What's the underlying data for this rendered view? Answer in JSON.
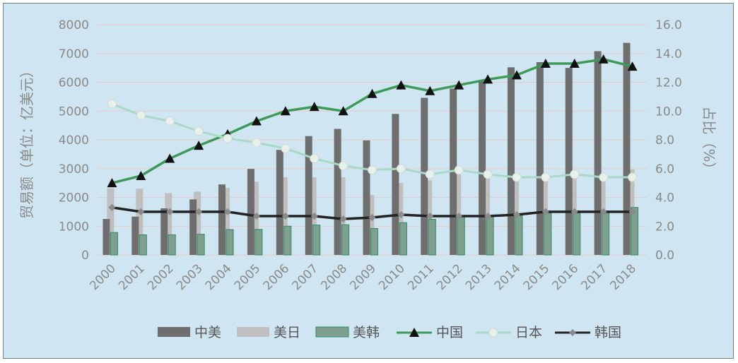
{
  "chart_data": {
    "type": "bar",
    "categories": [
      "2000",
      "2001",
      "2002",
      "2003",
      "2004",
      "2005",
      "2006",
      "2007",
      "2008",
      "2009",
      "2010",
      "2011",
      "2012",
      "2013",
      "2014",
      "2015",
      "2016",
      "2017",
      "2018"
    ],
    "ylabel": "贸易额（单位：亿美元）",
    "y2label": "占比（%）",
    "ylim": [
      0,
      8000
    ],
    "y2lim": [
      0,
      16.0
    ],
    "yticks": [
      "0",
      "1000",
      "2000",
      "3000",
      "4000",
      "5000",
      "6000",
      "7000",
      "8000"
    ],
    "y2ticks": [
      "0.0",
      "2.0",
      "4.0",
      "6.0",
      "8.0",
      "10.0",
      "12.0",
      "14.0",
      "16.0"
    ],
    "grid": true,
    "legend_position": "bottom",
    "bar_series": [
      {
        "name": "中美",
        "color": "#6e6e6e",
        "values": [
          1250,
          1330,
          1620,
          1930,
          2450,
          2990,
          3650,
          4130,
          4380,
          3980,
          4900,
          5460,
          5780,
          6050,
          6520,
          6700,
          6500,
          7080,
          7370
        ]
      },
      {
        "name": "美日",
        "color": "#bfbfbf",
        "values": [
          2310,
          2300,
          2150,
          2200,
          2330,
          2550,
          2700,
          2700,
          2700,
          2080,
          2500,
          2590,
          2800,
          2700,
          2780,
          2800,
          2800,
          2800,
          2970
        ]
      },
      {
        "name": "美韩",
        "color": "#7f9f8f",
        "values": [
          780,
          700,
          700,
          720,
          880,
          890,
          1000,
          1040,
          1050,
          920,
          1120,
          1240,
          1350,
          1350,
          1380,
          1460,
          1460,
          1480,
          1650
        ]
      }
    ],
    "line_series": [
      {
        "name": "中国",
        "color": "#3f9a5a",
        "marker": "triangle",
        "values": [
          5.0,
          5.5,
          6.7,
          7.6,
          8.4,
          9.3,
          10.0,
          10.3,
          10.0,
          11.2,
          11.8,
          11.4,
          11.8,
          12.2,
          12.5,
          13.3,
          13.3,
          13.6,
          13.1
        ]
      },
      {
        "name": "日本",
        "color": "#a8d9c6",
        "marker": "circle",
        "values": [
          10.5,
          9.7,
          9.3,
          8.6,
          8.1,
          7.8,
          7.4,
          6.7,
          6.2,
          5.9,
          6.0,
          5.6,
          5.9,
          5.6,
          5.4,
          5.4,
          5.6,
          5.4,
          5.4
        ]
      },
      {
        "name": "韩国",
        "color": "#222222",
        "marker": "diamond",
        "values": [
          3.3,
          3.0,
          3.0,
          3.0,
          3.0,
          2.7,
          2.7,
          2.7,
          2.5,
          2.6,
          2.8,
          2.7,
          2.7,
          2.7,
          2.8,
          3.0,
          3.0,
          3.0,
          3.0
        ]
      }
    ]
  }
}
